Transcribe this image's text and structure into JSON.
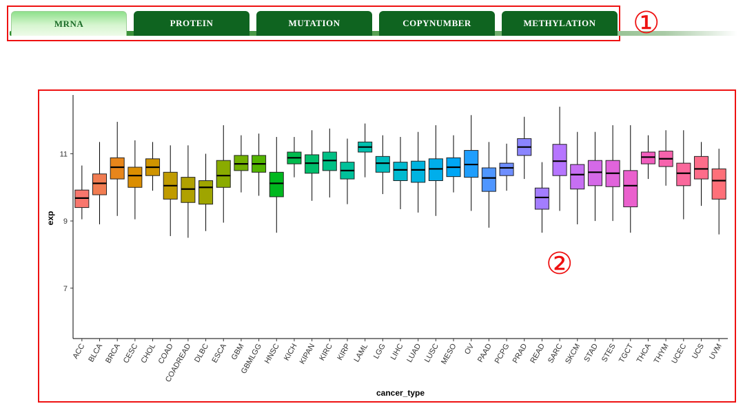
{
  "tabs": [
    {
      "label": "MRNA",
      "active": true
    },
    {
      "label": "PROTEIN",
      "active": false
    },
    {
      "label": "MUTATION",
      "active": false
    },
    {
      "label": "COPYNUMBER",
      "active": false
    },
    {
      "label": "METHYLATION",
      "active": false
    }
  ],
  "markers": {
    "one": "①",
    "two": "②"
  },
  "colors": {
    "tab_active_text": "#1b6b28",
    "tab_bg": "#0f6420",
    "highlight_border": "#ee1111"
  },
  "chart_data": {
    "type": "boxplot",
    "title": "",
    "xlabel": "cancer_type",
    "ylabel": "exp",
    "ylim": [
      5.5,
      12.75
    ],
    "yticks": [
      7,
      9,
      11
    ],
    "grid": false,
    "legend": "none",
    "categories": [
      "ACC",
      "BLCA",
      "BRCA",
      "CESC",
      "CHOL",
      "COAD",
      "COADREAD",
      "DLBC",
      "ESCA",
      "GBM",
      "GBMLGG",
      "HNSC",
      "KICH",
      "KIPAN",
      "KIRC",
      "KIRP",
      "LAML",
      "LGG",
      "LIHC",
      "LUAD",
      "LUSC",
      "MESO",
      "OV",
      "PAAD",
      "PCPG",
      "PRAD",
      "READ",
      "SARC",
      "SKCM",
      "STAD",
      "STES",
      "TGCT",
      "THCA",
      "THYM",
      "UCEC",
      "UCS",
      "UVM"
    ],
    "series": [
      {
        "cat": "ACC",
        "min": 9.05,
        "q1": 9.4,
        "median": 9.68,
        "q3": 9.92,
        "max": 10.65,
        "color": "#f8766d"
      },
      {
        "cat": "BLCA",
        "min": 8.9,
        "q1": 9.78,
        "median": 10.12,
        "q3": 10.4,
        "max": 11.35,
        "color": "#f27d52"
      },
      {
        "cat": "BRCA",
        "min": 9.15,
        "q1": 10.25,
        "median": 10.6,
        "q3": 10.88,
        "max": 11.95,
        "color": "#e7861b"
      },
      {
        "cat": "CESC",
        "min": 9.05,
        "q1": 10.0,
        "median": 10.35,
        "q3": 10.6,
        "max": 11.4,
        "color": "#db8e00"
      },
      {
        "cat": "CHOL",
        "min": 9.9,
        "q1": 10.35,
        "median": 10.6,
        "q3": 10.85,
        "max": 11.35,
        "color": "#cf9400"
      },
      {
        "cat": "COAD",
        "min": 8.55,
        "q1": 9.65,
        "median": 10.05,
        "q3": 10.45,
        "max": 11.25,
        "color": "#c09b00"
      },
      {
        "cat": "COADREAD",
        "min": 8.5,
        "q1": 9.55,
        "median": 9.95,
        "q3": 10.3,
        "max": 11.25,
        "color": "#b0a100"
      },
      {
        "cat": "DLBC",
        "min": 8.7,
        "q1": 9.5,
        "median": 10.0,
        "q3": 10.2,
        "max": 11.0,
        "color": "#9fa500"
      },
      {
        "cat": "ESCA",
        "min": 8.95,
        "q1": 10.0,
        "median": 10.35,
        "q3": 10.8,
        "max": 11.85,
        "color": "#8aab00"
      },
      {
        "cat": "GBM",
        "min": 9.85,
        "q1": 10.5,
        "median": 10.7,
        "q3": 10.95,
        "max": 11.55,
        "color": "#72b000"
      },
      {
        "cat": "GBMLGG",
        "min": 9.75,
        "q1": 10.45,
        "median": 10.7,
        "q3": 10.95,
        "max": 11.6,
        "color": "#53b400"
      },
      {
        "cat": "HNSC",
        "min": 8.65,
        "q1": 9.72,
        "median": 10.12,
        "q3": 10.45,
        "max": 11.5,
        "color": "#00b81f"
      },
      {
        "cat": "KICH",
        "min": 10.3,
        "q1": 10.7,
        "median": 10.88,
        "q3": 11.05,
        "max": 11.5,
        "color": "#00bb4e"
      },
      {
        "cat": "KIPAN",
        "min": 9.6,
        "q1": 10.42,
        "median": 10.72,
        "q3": 10.97,
        "max": 11.7,
        "color": "#00be6c"
      },
      {
        "cat": "KIRC",
        "min": 9.7,
        "q1": 10.5,
        "median": 10.8,
        "q3": 11.05,
        "max": 11.75,
        "color": "#00c085"
      },
      {
        "cat": "KIRP",
        "min": 9.5,
        "q1": 10.25,
        "median": 10.5,
        "q3": 10.75,
        "max": 11.45,
        "color": "#00c19a"
      },
      {
        "cat": "LAML",
        "min": 10.3,
        "q1": 11.05,
        "median": 11.2,
        "q3": 11.35,
        "max": 11.9,
        "color": "#00c0ae"
      },
      {
        "cat": "LGG",
        "min": 9.8,
        "q1": 10.45,
        "median": 10.72,
        "q3": 10.92,
        "max": 11.55,
        "color": "#00bec0"
      },
      {
        "cat": "LIHC",
        "min": 9.35,
        "q1": 10.2,
        "median": 10.52,
        "q3": 10.75,
        "max": 11.5,
        "color": "#00bad0"
      },
      {
        "cat": "LUAD",
        "min": 9.25,
        "q1": 10.15,
        "median": 10.52,
        "q3": 10.78,
        "max": 11.65,
        "color": "#00b4e0"
      },
      {
        "cat": "LUSC",
        "min": 9.15,
        "q1": 10.2,
        "median": 10.55,
        "q3": 10.85,
        "max": 11.85,
        "color": "#00aeeb"
      },
      {
        "cat": "MESO",
        "min": 9.85,
        "q1": 10.32,
        "median": 10.6,
        "q3": 10.88,
        "max": 11.55,
        "color": "#00a6f5"
      },
      {
        "cat": "OV",
        "min": 9.3,
        "q1": 10.3,
        "median": 10.68,
        "q3": 11.1,
        "max": 12.15,
        "color": "#1f9efc"
      },
      {
        "cat": "PAAD",
        "min": 8.8,
        "q1": 9.88,
        "median": 10.28,
        "q3": 10.58,
        "max": 11.35,
        "color": "#4f96ff"
      },
      {
        "cat": "PCPG",
        "min": 9.9,
        "q1": 10.35,
        "median": 10.58,
        "q3": 10.72,
        "max": 11.3,
        "color": "#6e8eff"
      },
      {
        "cat": "PRAD",
        "min": 10.25,
        "q1": 10.95,
        "median": 11.2,
        "q3": 11.45,
        "max": 12.1,
        "color": "#8b85ff"
      },
      {
        "cat": "READ",
        "min": 8.65,
        "q1": 9.35,
        "median": 9.7,
        "q3": 9.98,
        "max": 10.75,
        "color": "#a37dff"
      },
      {
        "cat": "SARC",
        "min": 9.3,
        "q1": 10.35,
        "median": 10.78,
        "q3": 11.28,
        "max": 12.4,
        "color": "#b675ff"
      },
      {
        "cat": "SKCM",
        "min": 8.9,
        "q1": 9.95,
        "median": 10.38,
        "q3": 10.68,
        "max": 11.65,
        "color": "#c76ff3"
      },
      {
        "cat": "STAD",
        "min": 9.0,
        "q1": 10.05,
        "median": 10.45,
        "q3": 10.8,
        "max": 11.65,
        "color": "#d569e8"
      },
      {
        "cat": "STES",
        "min": 9.0,
        "q1": 10.02,
        "median": 10.42,
        "q3": 10.8,
        "max": 11.85,
        "color": "#e164db"
      },
      {
        "cat": "TGCT",
        "min": 8.65,
        "q1": 9.42,
        "median": 10.05,
        "q3": 10.5,
        "max": 11.85,
        "color": "#ea60cd"
      },
      {
        "cat": "THCA",
        "min": 10.25,
        "q1": 10.7,
        "median": 10.9,
        "q3": 11.05,
        "max": 11.55,
        "color": "#f15dbe"
      },
      {
        "cat": "THYM",
        "min": 10.05,
        "q1": 10.62,
        "median": 10.85,
        "q3": 11.08,
        "max": 11.7,
        "color": "#f763ad"
      },
      {
        "cat": "UCEC",
        "min": 9.05,
        "q1": 10.05,
        "median": 10.42,
        "q3": 10.72,
        "max": 11.7,
        "color": "#fa689c"
      },
      {
        "cat": "UCS",
        "min": 9.45,
        "q1": 10.25,
        "median": 10.55,
        "q3": 10.92,
        "max": 11.35,
        "color": "#fd6d8a"
      },
      {
        "cat": "UVM",
        "min": 8.6,
        "q1": 9.65,
        "median": 10.2,
        "q3": 10.55,
        "max": 11.15,
        "color": "#fe7079"
      }
    ]
  }
}
